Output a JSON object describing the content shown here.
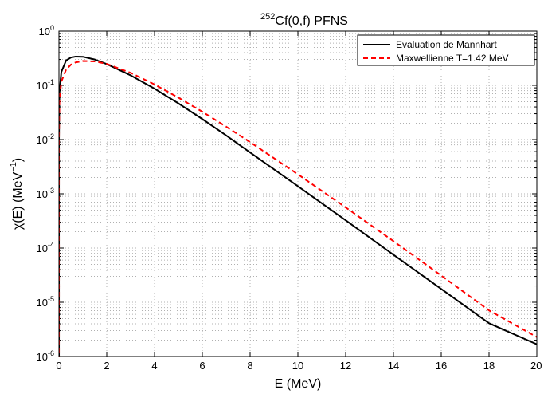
{
  "chart_data": {
    "type": "line",
    "title": {
      "sup": "252",
      "text": "Cf(0,f) PFNS"
    },
    "xlabel": "E (MeV)",
    "ylabel": {
      "main": "χ(E) (MeV",
      "sup": "−1",
      "close": ")"
    },
    "xlim": [
      0,
      20
    ],
    "ylim": [
      1e-06,
      1
    ],
    "y_scale": "log",
    "grid": true,
    "x_ticks": [
      "0",
      "2",
      "4",
      "6",
      "8",
      "10",
      "12",
      "14",
      "16",
      "18",
      "20"
    ],
    "y_ticks": [
      {
        "base": "10",
        "exp": "0"
      },
      {
        "base": "10",
        "exp": "-1"
      },
      {
        "base": "10",
        "exp": "-2"
      },
      {
        "base": "10",
        "exp": "-3"
      },
      {
        "base": "10",
        "exp": "-4"
      },
      {
        "base": "10",
        "exp": "-5"
      },
      {
        "base": "10",
        "exp": "-6"
      }
    ],
    "legend_position": "top-right",
    "series": [
      {
        "name": "Evaluation de Mannhart",
        "color": "#000000",
        "style": "solid",
        "x": [
          0.001,
          0.02,
          0.1,
          0.3,
          0.5,
          0.7,
          1,
          1.5,
          2,
          3,
          4,
          5,
          6,
          7,
          8,
          10,
          12,
          14,
          16,
          18,
          20
        ],
        "y": [
          0.0102,
          0.0725,
          0.177,
          0.288,
          0.325,
          0.339,
          0.336,
          0.299,
          0.247,
          0.153,
          0.0869,
          0.0465,
          0.0239,
          0.0119,
          0.00579,
          0.00138,
          0.000325,
          7.52e-05,
          1.76e-05,
          4.1e-06,
          1.68e-06
        ]
      },
      {
        "name": "Maxwellienne T=1.42 MeV",
        "color": "#ff0000",
        "style": "dashed",
        "x": [
          0.001,
          0.02,
          0.1,
          0.3,
          0.5,
          0.7,
          1,
          1.5,
          2,
          3,
          4,
          5,
          6,
          7,
          8,
          10,
          12,
          14,
          16,
          18,
          20
        ],
        "y": [
          0.0118,
          0.0526,
          0.117,
          0.196,
          0.241,
          0.265,
          0.281,
          0.276,
          0.249,
          0.17,
          0.104,
          0.0594,
          0.0326,
          0.0173,
          0.00897,
          0.00229,
          0.000562,
          0.000134,
          3.11e-05,
          7.08e-06,
          2.28e-06
        ]
      }
    ]
  }
}
